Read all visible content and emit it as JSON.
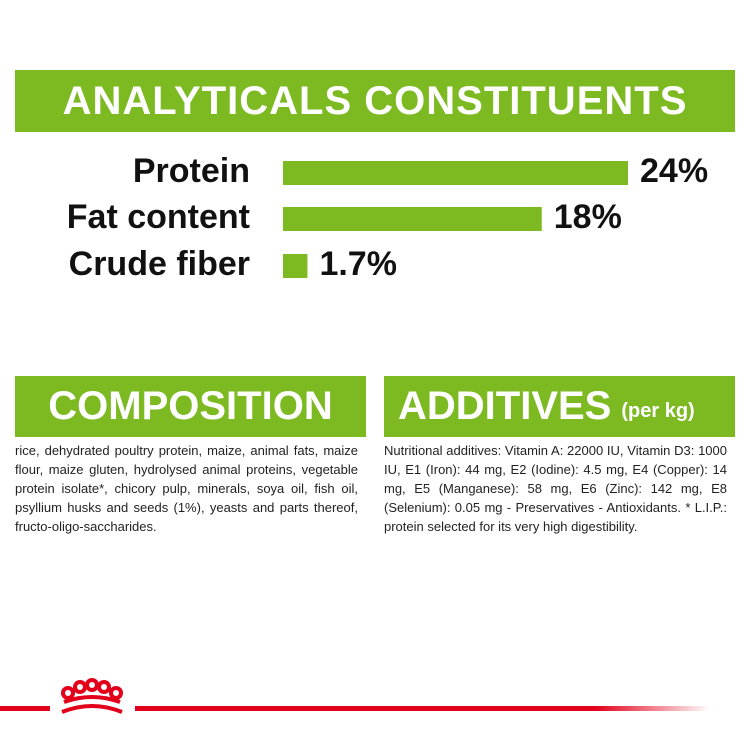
{
  "chart_data": {
    "type": "bar",
    "title": "ANALYTICALS CONSTITUENTS",
    "categories": [
      "Protein",
      "Fat content",
      "Crude fiber"
    ],
    "values": [
      24,
      18,
      1.7
    ],
    "value_labels": [
      "24%",
      "18%",
      "1.7%"
    ],
    "color": "#7dba22"
  },
  "composition": {
    "title": "COMPOSITION",
    "text": "rice, dehydrated poultry protein, maize, animal fats, maize flour, maize gluten, hydrolysed animal proteins, vegetable protein isolate*, chicory pulp, minerals, soya oil, fish oil, psyllium husks and seeds (1%), yeasts and parts thereof, fructo-oligo-saccharides."
  },
  "additives": {
    "title": "ADDITIVES",
    "subtitle": "(per kg)",
    "text": "Nutritional additives: Vitamin A: 22000 IU, Vitamin D3: 1000 IU, E1 (Iron): 44 mg, E2 (Iodine): 4.5 mg, E4 (Copper): 14 mg, E5 (Manganese): 58 mg, E6 (Zinc): 142 mg, E8 (Selenium): 0.05 mg - Preservatives - Antioxidants. * L.I.P.: protein selected for its very high digestibility."
  }
}
